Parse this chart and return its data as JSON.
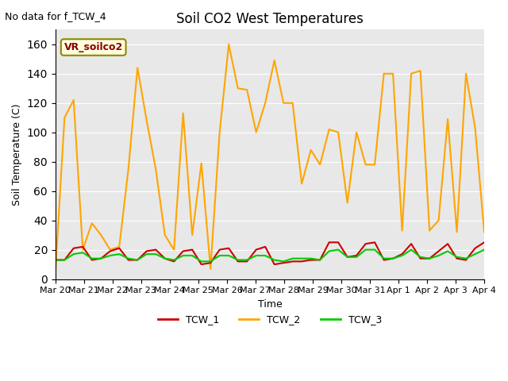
{
  "title": "Soil CO2 West Temperatures",
  "subtitle": "No data for f_TCW_4",
  "xlabel": "Time",
  "ylabel": "Soil Temperature (C)",
  "legend_label": "VR_soilco2",
  "ylim": [
    0,
    170
  ],
  "yticks": [
    0,
    20,
    40,
    60,
    80,
    100,
    120,
    140,
    160
  ],
  "xtick_labels": [
    "Mar 20",
    "Mar 21",
    "Mar 22",
    "Mar 23",
    "Mar 24",
    "Mar 25",
    "Mar 26",
    "Mar 27",
    "Mar 28",
    "Mar 29",
    "Mar 30",
    "Mar 31",
    "Apr 1",
    "Apr 2",
    "Apr 3",
    "Apr 4"
  ],
  "color_tcw1": "#CC0000",
  "color_tcw2": "#FFA500",
  "color_tcw3": "#00CC00",
  "bg_color": "#E8E8E8",
  "tcw2_data": [
    5,
    110,
    122,
    20,
    38,
    30,
    20,
    22,
    75,
    144,
    108,
    75,
    30,
    20,
    113,
    30,
    79,
    7,
    100,
    160,
    130,
    129,
    100,
    120,
    149,
    120,
    120,
    65,
    88,
    78,
    102,
    100,
    52,
    100,
    78,
    78,
    140,
    140,
    33,
    140,
    142,
    33,
    40,
    109,
    32,
    140,
    103,
    32
  ],
  "tcw1_data": [
    13,
    13,
    21,
    22,
    13,
    14,
    19,
    21,
    13,
    13,
    19,
    20,
    14,
    12,
    19,
    20,
    10,
    11,
    20,
    21,
    12,
    12,
    20,
    22,
    10,
    11,
    12,
    12,
    13,
    13,
    25,
    25,
    15,
    16,
    24,
    25,
    13,
    14,
    17,
    24,
    14,
    14,
    19,
    24,
    14,
    13,
    21,
    25
  ],
  "tcw3_data": [
    13,
    13,
    17,
    18,
    14,
    14,
    16,
    17,
    14,
    13,
    17,
    17,
    14,
    13,
    16,
    16,
    12,
    12,
    16,
    16,
    13,
    13,
    16,
    16,
    13,
    12,
    14,
    14,
    14,
    13,
    19,
    20,
    15,
    15,
    20,
    20,
    14,
    14,
    16,
    20,
    15,
    14,
    16,
    19,
    15,
    14,
    17,
    20
  ],
  "n_points": 48
}
